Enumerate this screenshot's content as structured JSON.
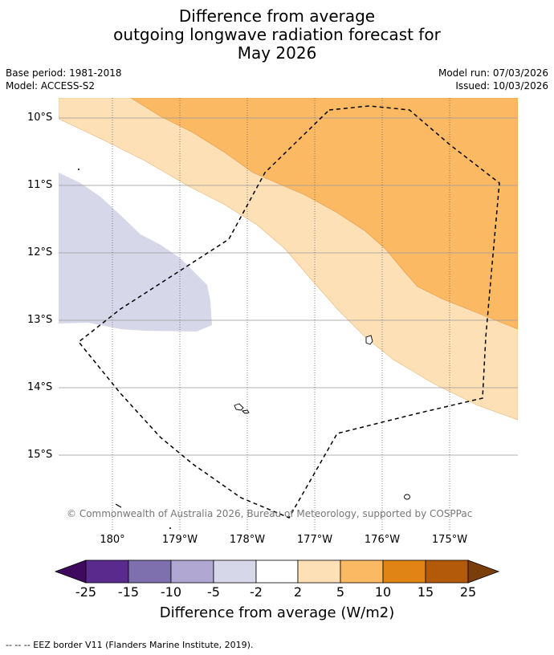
{
  "title": {
    "line1": "Difference from average",
    "line2": "outgoing longwave radiation forecast for",
    "line3": "May 2026"
  },
  "meta": {
    "base_period": "Base period: 1981-2018",
    "model": "Model: ACCESS-S2",
    "model_run": "Model run: 07/03/2026",
    "issued": "Issued: 10/03/2026"
  },
  "map": {
    "lat_labels": [
      "10°S",
      "11°S",
      "12°S",
      "13°S",
      "14°S",
      "15°S"
    ],
    "lon_labels": [
      "180°",
      "179°W",
      "178°W",
      "177°W",
      "176°W",
      "175°W"
    ],
    "attribution": "© Commonwealth of Australia 2026, Bureau of Meteorology, supported by COSPPac"
  },
  "colorbar": {
    "tick_labels": [
      "-25",
      "-15",
      "-10",
      "-5",
      "-2",
      "2",
      "5",
      "10",
      "15",
      "25"
    ],
    "colors": [
      "#3f0a5e",
      "#5a2a8c",
      "#7e6fae",
      "#b0a8d2",
      "#d7d7ea",
      "#ffffff",
      "#fde0b5",
      "#fcb964",
      "#e08515",
      "#b35a0a",
      "#7a3d0c"
    ],
    "title": "Difference from average (W/m2)"
  },
  "footnote": "--  --  -- EEZ border V11 (Flanders Marine Institute, 2019)."
}
